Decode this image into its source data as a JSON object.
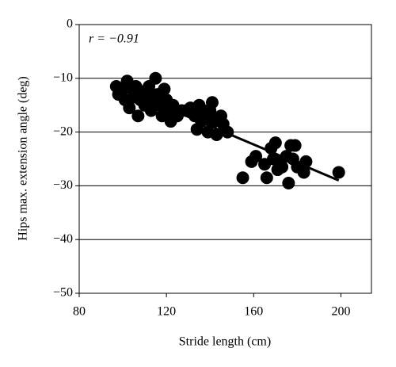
{
  "chart_data": {
    "type": "scatter",
    "xlabel": "Stride length (cm)",
    "ylabel": "Hips max. extension angle (deg)",
    "annotation": "r = −0.91",
    "color": "#000000",
    "xlim": [
      80,
      214
    ],
    "ylim": [
      -50,
      0
    ],
    "xticks": [
      80,
      120,
      160,
      200
    ],
    "yticks": [
      {
        "value": 0,
        "label": "0"
      },
      {
        "value": -10,
        "label": "−10"
      },
      {
        "value": -20,
        "label": "−20"
      },
      {
        "value": -30,
        "label": "−30"
      },
      {
        "value": -40,
        "label": "−40"
      },
      {
        "value": -50,
        "label": "−50"
      }
    ],
    "grid": true,
    "x": [
      97,
      98,
      100,
      101,
      102,
      103,
      104,
      105,
      106,
      107,
      108,
      109,
      110,
      111,
      112,
      113,
      114,
      115,
      116,
      117,
      118,
      119,
      120,
      121,
      122,
      123,
      125,
      127,
      129,
      131,
      133,
      134,
      135,
      136,
      137,
      138,
      139,
      140,
      141,
      142,
      143,
      145,
      146,
      148,
      155,
      159,
      161,
      165,
      166,
      168,
      169,
      170,
      171,
      172,
      173,
      175,
      176,
      177,
      178,
      179,
      180,
      183,
      184,
      199
    ],
    "values": [
      -11.5,
      -13,
      -12,
      -14,
      -10.5,
      -15.5,
      -12,
      -13.5,
      -11.5,
      -17,
      -14,
      -12.5,
      -15,
      -13,
      -11.5,
      -16,
      -14,
      -10,
      -13,
      -15,
      -17,
      -12,
      -14,
      -16,
      -18,
      -15,
      -17,
      -16,
      -16,
      -15.5,
      -17,
      -19.5,
      -15,
      -18,
      -16,
      -17.5,
      -20,
      -16,
      -14.5,
      -18,
      -20.5,
      -17,
      -18.5,
      -20,
      -28.5,
      -25.5,
      -24.5,
      -26,
      -28.5,
      -23,
      -25,
      -22,
      -27,
      -25.5,
      -26.5,
      -24.5,
      -29.5,
      -22.5,
      -25,
      -22.5,
      -26.5,
      -27.5,
      -25.5,
      -27.5
    ],
    "fit_line": {
      "x": [
        97,
        199
      ],
      "y": [
        -11.5,
        -29
      ]
    }
  }
}
